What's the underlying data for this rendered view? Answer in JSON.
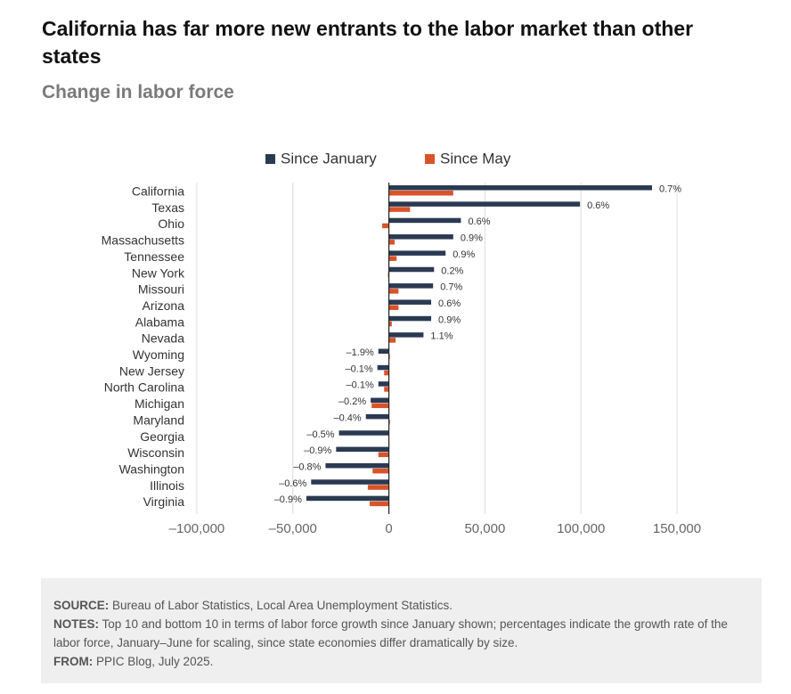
{
  "title": "California has far more new entrants to the labor market than other states",
  "subtitle": "Change in labor force",
  "colors": {
    "jan": "#2a3a52",
    "may": "#d9532a",
    "grid": "#dcdcdc",
    "axis": "#222222",
    "text": "#333333"
  },
  "chart_data": {
    "type": "bar",
    "orientation": "horizontal",
    "categories": [
      "California",
      "Texas",
      "Ohio",
      "Massachusetts",
      "Tennessee",
      "New York",
      "Missouri",
      "Arizona",
      "Alabama",
      "Nevada",
      "Wyoming",
      "New Jersey",
      "North Carolina",
      "Michigan",
      "Maryland",
      "Georgia",
      "Wisconsin",
      "Washington",
      "Illinois",
      "Virginia"
    ],
    "series": [
      {
        "name": "Since January",
        "color": "#2a3a52",
        "values": [
          137000,
          99500,
          37500,
          33500,
          29500,
          23500,
          23000,
          22000,
          22000,
          18000,
          -5500,
          -6000,
          -5500,
          -9500,
          -12000,
          -26000,
          -27500,
          -33000,
          -40500,
          -43000
        ]
      },
      {
        "name": "Since May",
        "color": "#d9532a",
        "values": [
          33500,
          11000,
          -3500,
          3000,
          4000,
          -500,
          5000,
          5000,
          1500,
          3500,
          500,
          -2500,
          -2500,
          -9000,
          500,
          0,
          -5500,
          -8500,
          -11000,
          -10000
        ]
      }
    ],
    "labels": [
      "0.7%",
      "0.6%",
      "0.6%",
      "0.9%",
      "0.9%",
      "0.2%",
      "0.7%",
      "0.6%",
      "0.9%",
      "1.1%",
      "–1.9%",
      "–0.1%",
      "–0.1%",
      "–0.2%",
      "–0.4%",
      "–0.5%",
      "–0.9%",
      "–0.8%",
      "–0.6%",
      "–0.9%"
    ],
    "xlim": [
      -100000,
      150000
    ],
    "xticks": [
      -100000,
      -50000,
      0,
      50000,
      100000,
      150000
    ],
    "xtick_labels": [
      "–100,000",
      "–50,000",
      "0",
      "50,000",
      "100,000",
      "150,000"
    ],
    "legend_position": "top"
  },
  "notes": {
    "source_label": "SOURCE:",
    "source_text": "Bureau of Labor Statistics, Local Area Unemployment Statistics.",
    "notes_label": "NOTES:",
    "notes_text": "Top 10 and bottom 10 in terms of labor force growth since January shown; percentages indicate the growth rate of the labor force, January–June for scaling, since state economies differ dramatically by size.",
    "from_label": "FROM:",
    "from_text": "PPIC Blog, July 2025."
  }
}
